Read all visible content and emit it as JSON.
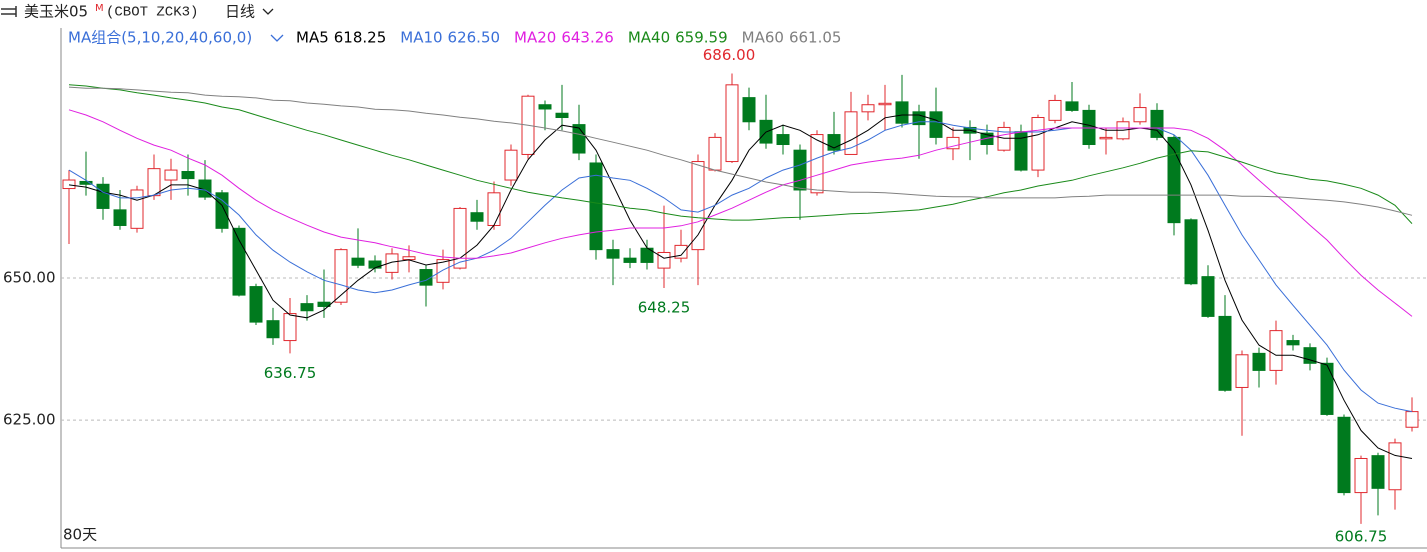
{
  "header": {
    "instrument": "美玉米05",
    "instrument_mark": "M",
    "code": "(CBOT ZCK3)",
    "period": "日线"
  },
  "chart_data": {
    "type": "candlestick",
    "ma_title": "MA组合(5,10,20,40,60,0)",
    "period_label": "80天",
    "ylim": [
      602.5,
      694
    ],
    "yticks": [
      {
        "value": 625,
        "label": "625.00"
      },
      {
        "value": 650,
        "label": "650.00"
      }
    ],
    "grid": true,
    "up_color": "#e0282e",
    "down_color": "#007a1e",
    "open": [
      665.75,
      667,
      666.5,
      662,
      658.75,
      664.5,
      667.25,
      668.75,
      667.25,
      665,
      658.75,
      648.5,
      642.5,
      639,
      645.5,
      645.75,
      645.75,
      653.5,
      653,
      651,
      653.25,
      651.5,
      649.25,
      651.75,
      661.5,
      659.25,
      667.25,
      671.75,
      680.5,
      679,
      677,
      670.25,
      655,
      653.5,
      655.25,
      651.75,
      653.5,
      655,
      669,
      670.5,
      681.75,
      677.75,
      675.25,
      672.5,
      665,
      675.25,
      671.75,
      679.25,
      680.5,
      681,
      679.25,
      679.25,
      672.75,
      676.5,
      675.5,
      672.5,
      675.75,
      669,
      677.75,
      681,
      679.5,
      674.5,
      674.5,
      677.5,
      679.5,
      674.75,
      660.25,
      650.25,
      643.25,
      630.75,
      636.75,
      633.75,
      639,
      637.75,
      635,
      625.5,
      612.25,
      618.75,
      612.75,
      623.75
    ],
    "high": [
      669,
      672.25,
      667.75,
      665.5,
      666.25,
      671.75,
      671,
      671.75,
      670.75,
      665.5,
      659.25,
      649,
      644.75,
      646.5,
      647,
      651.5,
      655.25,
      658.75,
      654,
      655.25,
      655.75,
      652.25,
      655,
      662.5,
      663.75,
      667,
      673.5,
      682.25,
      681.25,
      684,
      680.5,
      671.75,
      656.75,
      655.25,
      656.75,
      662.75,
      658.5,
      671.75,
      675.5,
      686,
      683.5,
      682.25,
      677,
      673.5,
      676,
      679.25,
      682.75,
      682.25,
      684,
      685.75,
      680.5,
      683.5,
      676.5,
      677.75,
      677,
      677.5,
      677,
      678.75,
      682.25,
      684.5,
      680.5,
      676.5,
      678.25,
      682.5,
      680.75,
      675.25,
      660.5,
      652.25,
      647,
      637.25,
      637.75,
      642.5,
      640,
      638.5,
      636,
      626,
      618.75,
      619.25,
      621.75,
      629
    ],
    "low": [
      656,
      664.5,
      660.25,
      658.5,
      658,
      663.75,
      663.75,
      664.5,
      663.75,
      658,
      646.75,
      641.75,
      638.25,
      636.75,
      642.5,
      643,
      645.25,
      651.75,
      651,
      649.75,
      651,
      645,
      648,
      651.5,
      658.5,
      658.5,
      666.25,
      671,
      676,
      676,
      670.75,
      653.25,
      648.75,
      651.75,
      651.5,
      648.25,
      652.75,
      648.75,
      668.75,
      670.25,
      676,
      672.75,
      671.75,
      660.25,
      664.5,
      671.75,
      671.75,
      677.75,
      676,
      676.5,
      671,
      673.5,
      670.75,
      670.75,
      671.75,
      672.25,
      668.75,
      667.75,
      677.25,
      679.25,
      672.75,
      671.75,
      674.25,
      677,
      674.25,
      657.5,
      648.75,
      643,
      630,
      622.25,
      630.75,
      631.25,
      637.25,
      633.75,
      625.75,
      611.75,
      606.75,
      608.25,
      609.25,
      623
    ],
    "close": [
      667.25,
      666.5,
      662.25,
      659.25,
      665.5,
      669.25,
      669,
      667.5,
      664.25,
      658.75,
      647,
      642.25,
      639.5,
      643.75,
      644.25,
      645,
      655,
      652.25,
      651.75,
      654.25,
      653.75,
      648.75,
      653.25,
      662.25,
      660,
      665,
      672.5,
      682,
      679.75,
      678.25,
      672,
      655,
      653.5,
      652.75,
      652.75,
      654.5,
      655.75,
      670.5,
      674.75,
      684,
      677.5,
      673.75,
      673.5,
      665.5,
      675.25,
      672.5,
      679.25,
      680.5,
      680.75,
      677.25,
      677,
      674.75,
      674.75,
      675.5,
      673.5,
      676.5,
      669,
      678.25,
      681.25,
      679.5,
      673.5,
      674.75,
      677.5,
      680,
      674.75,
      659.75,
      649,
      643.25,
      630.25,
      636.5,
      633.75,
      640.75,
      638.25,
      635,
      626,
      612.25,
      618.25,
      613,
      621,
      626.5
    ],
    "high_labels": [
      null,
      null,
      null,
      null,
      null,
      null,
      null,
      null,
      null,
      null,
      null,
      null,
      null,
      null,
      null,
      null,
      null,
      null,
      null,
      null,
      null,
      null,
      null,
      null,
      null,
      null,
      null,
      null,
      null,
      null,
      null,
      null,
      null,
      null,
      null,
      null,
      null,
      null,
      null,
      "686.00",
      null,
      null,
      null,
      null,
      null,
      null,
      null,
      null,
      null,
      null,
      null,
      null,
      null,
      null,
      null,
      null,
      null,
      null,
      null,
      null,
      null,
      null,
      null,
      null,
      null,
      null,
      null,
      null,
      null,
      null,
      null,
      null,
      null,
      null,
      null,
      null,
      null,
      null,
      null,
      null
    ],
    "low_labels": [
      null,
      null,
      null,
      null,
      null,
      null,
      null,
      null,
      null,
      null,
      null,
      null,
      null,
      "636.75",
      null,
      null,
      null,
      null,
      null,
      null,
      null,
      null,
      null,
      null,
      null,
      null,
      null,
      null,
      null,
      null,
      null,
      null,
      null,
      null,
      null,
      "648.25",
      null,
      null,
      null,
      null,
      null,
      null,
      null,
      null,
      null,
      null,
      null,
      null,
      null,
      null,
      null,
      null,
      null,
      null,
      null,
      null,
      null,
      null,
      null,
      null,
      null,
      null,
      null,
      null,
      null,
      null,
      null,
      null,
      null,
      null,
      null,
      null,
      null,
      null,
      null,
      null,
      "606.75",
      null,
      null,
      null
    ],
    "series": [
      {
        "name": "MA5",
        "color": "#000000",
        "legend_value": "618.25",
        "values": [
          666.4,
          666,
          665.1,
          664.6,
          663.7,
          664.6,
          666.4,
          666.4,
          665.5,
          662.8,
          656.7,
          651.4,
          646.1,
          643.5,
          643,
          644.4,
          647,
          649.6,
          651.8,
          652.8,
          653.2,
          652.3,
          652.8,
          653.5,
          655.8,
          659.3,
          665.5,
          670.8,
          674.3,
          676.9,
          676.4,
          672.5,
          666.4,
          660.2,
          655.3,
          653.5,
          654,
          657.6,
          662.8,
          667.2,
          672.5,
          675.7,
          676.9,
          676,
          674.3,
          672.9,
          674.3,
          676,
          678.2,
          678.7,
          678.7,
          677.8,
          676,
          676,
          675.2,
          674.6,
          674.6,
          675.2,
          676.4,
          677.5,
          676.9,
          676,
          676,
          676.4,
          676,
          672.5,
          666.4,
          658.4,
          649.6,
          642.6,
          638.2,
          636.4,
          636.4,
          635.6,
          634.7,
          628.5,
          623.2,
          620.1,
          618.8,
          618.25
        ]
      },
      {
        "name": "MA10",
        "color": "#3a6fd8",
        "legend_value": "626.50",
        "values": [
          669,
          667.2,
          665.1,
          664.1,
          664.1,
          664.6,
          665.5,
          665.8,
          665.5,
          663.7,
          661.1,
          657.6,
          654.9,
          652.8,
          651.1,
          649.6,
          648.8,
          647.9,
          647.4,
          647.9,
          648.8,
          649.6,
          651.4,
          652.8,
          653.5,
          654.9,
          657,
          659.9,
          662.8,
          665.5,
          667.6,
          668.1,
          667.6,
          667.2,
          665.8,
          664.1,
          662,
          661.6,
          662.8,
          664.6,
          665.8,
          667.6,
          669,
          669.9,
          671.1,
          672.2,
          672.9,
          674.3,
          676,
          676.9,
          677.5,
          677.5,
          676.9,
          676.4,
          676,
          675.7,
          675.7,
          675.7,
          676,
          676.4,
          676.4,
          676.4,
          676.4,
          676.4,
          676.4,
          675.2,
          672.5,
          668.1,
          662.8,
          657.6,
          653.2,
          648.8,
          645.2,
          641.7,
          638.2,
          633.8,
          630.3,
          628,
          627.1,
          626.5
        ]
      },
      {
        "name": "MA20",
        "color": "#e020e0",
        "legend_value": "643.26",
        "values": [
          679.6,
          678.7,
          677.5,
          676,
          674.6,
          673.4,
          672.5,
          671.1,
          669.9,
          668.1,
          665.8,
          663.7,
          662,
          660.6,
          659.3,
          658.1,
          657.2,
          656.7,
          656.2,
          655.5,
          654.9,
          654.2,
          653.7,
          653.5,
          653.5,
          653.9,
          654.4,
          655.3,
          656.2,
          657,
          657.6,
          658.1,
          658.4,
          658.8,
          658.8,
          658.8,
          659.2,
          659.9,
          661.1,
          662.3,
          663.7,
          665.1,
          666.4,
          667.2,
          668.1,
          669,
          669.9,
          670.4,
          670.8,
          671.1,
          671.6,
          672.5,
          673.2,
          673.9,
          674.6,
          675.2,
          675.7,
          676,
          676.4,
          676.4,
          676.4,
          676.4,
          676.4,
          676.4,
          676.4,
          676.4,
          676,
          674.6,
          672.5,
          669.9,
          667.2,
          664.6,
          662,
          659.3,
          656.7,
          653.5,
          650.5,
          647.9,
          645.6,
          643.26
        ]
      },
      {
        "name": "MA40",
        "color": "#1a8a1a",
        "legend_value": "659.59",
        "values": [
          684,
          683.8,
          683.4,
          683.1,
          682.6,
          682.2,
          681.7,
          681.3,
          680.8,
          680.1,
          679.6,
          678.7,
          677.8,
          676.9,
          676,
          675.2,
          674.3,
          673.4,
          672.5,
          671.6,
          670.8,
          669.9,
          669,
          668.1,
          667.2,
          666.5,
          665.8,
          665.1,
          664.6,
          664.1,
          663.7,
          663.2,
          662.8,
          662.3,
          662,
          661.4,
          660.9,
          660.6,
          660.4,
          660.2,
          660.2,
          660.4,
          660.6,
          660.7,
          660.9,
          661.1,
          661.3,
          661.4,
          661.6,
          661.8,
          662,
          662.5,
          663,
          663.7,
          664.3,
          665,
          665.5,
          666.2,
          666.7,
          667.2,
          668,
          668.7,
          669.4,
          670.2,
          671.1,
          671.8,
          672.4,
          672.2,
          671.3,
          670.4,
          669.4,
          668.5,
          668,
          667.4,
          667.1,
          666.5,
          665.8,
          664.6,
          662.8,
          659.59
        ]
      },
      {
        "name": "MA60",
        "color": "#808080",
        "legend_value": "661.05",
        "values": [
          683.6,
          683.4,
          683.4,
          683.3,
          683.1,
          682.9,
          682.7,
          682.6,
          682.2,
          682,
          681.9,
          681.7,
          681.3,
          681.2,
          680.8,
          680.6,
          680.3,
          680.1,
          679.7,
          679.6,
          679.4,
          679,
          678.7,
          678.3,
          678,
          677.6,
          677.3,
          676.9,
          676.4,
          675.9,
          675.3,
          674.6,
          673.9,
          673.2,
          672.5,
          671.6,
          670.8,
          669.9,
          669,
          668.3,
          667.6,
          666.9,
          666.4,
          665.8,
          665.5,
          665.3,
          665.1,
          665.1,
          665,
          664.8,
          664.6,
          664.4,
          664.3,
          664.3,
          664.1,
          664.1,
          664.1,
          664.1,
          664.1,
          664.3,
          664.4,
          664.6,
          664.6,
          664.6,
          664.6,
          664.6,
          664.6,
          664.6,
          664.6,
          664.4,
          664.4,
          664.3,
          664.1,
          663.9,
          663.7,
          663.4,
          663,
          662.5,
          661.8,
          661.05
        ]
      }
    ]
  }
}
